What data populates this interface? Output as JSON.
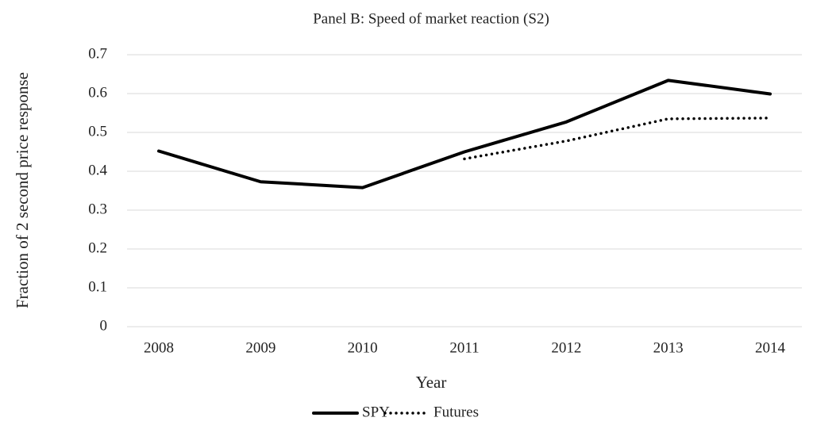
{
  "chart_data": {
    "type": "line",
    "title": "Panel B: Speed of market reaction (S2)",
    "x_label": "Year",
    "y_label": "Fraction of 2 second price response",
    "categories": [
      "2008",
      "2009",
      "2010",
      "2011",
      "2012",
      "2013",
      "2014"
    ],
    "series": [
      {
        "name": "SPY",
        "color": "#000000",
        "style": "solid",
        "values": [
          0.452,
          0.373,
          0.358,
          0.45,
          0.527,
          0.634,
          0.599
        ]
      },
      {
        "name": "Futures",
        "color": "#000000",
        "style": "dotted",
        "values": [
          null,
          null,
          null,
          0.432,
          0.478,
          0.535,
          0.537
        ]
      }
    ],
    "ylim": [
      0,
      0.7
    ],
    "yticks": [
      0,
      0.1,
      0.2,
      0.3,
      0.4,
      0.5,
      0.6,
      0.7
    ],
    "grid": true,
    "legend": "bottom"
  }
}
